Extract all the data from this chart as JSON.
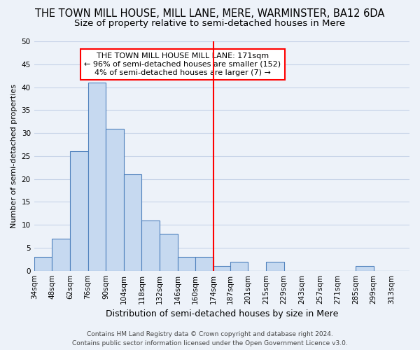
{
  "title": "THE TOWN MILL HOUSE, MILL LANE, MERE, WARMINSTER, BA12 6DA",
  "subtitle": "Size of property relative to semi-detached houses in Mere",
  "xlabel": "Distribution of semi-detached houses by size in Mere",
  "ylabel": "Number of semi-detached properties",
  "footer_line1": "Contains HM Land Registry data © Crown copyright and database right 2024.",
  "footer_line2": "Contains public sector information licensed under the Open Government Licence v3.0.",
  "bin_edges": [
    34,
    48,
    62,
    76,
    90,
    104,
    118,
    132,
    146,
    160,
    174,
    187,
    201,
    215,
    229,
    243,
    257,
    271,
    285,
    299,
    313,
    327
  ],
  "bin_labels": [
    "34sqm",
    "48sqm",
    "62sqm",
    "76sqm",
    "90sqm",
    "104sqm",
    "118sqm",
    "132sqm",
    "146sqm",
    "160sqm",
    "174sqm",
    "187sqm",
    "201sqm",
    "215sqm",
    "229sqm",
    "243sqm",
    "257sqm",
    "271sqm",
    "285sqm",
    "299sqm",
    "313sqm"
  ],
  "bar_values": [
    3,
    7,
    26,
    41,
    31,
    21,
    11,
    8,
    3,
    3,
    1,
    2,
    0,
    2,
    0,
    0,
    0,
    0,
    1,
    0,
    0
  ],
  "bar_color": "#c6d9f0",
  "bar_edge_color": "#4f81bd",
  "vline_x": 174,
  "annotation_text": "THE TOWN MILL HOUSE MILL LANE: 171sqm\n← 96% of semi-detached houses are smaller (152)\n4% of semi-detached houses are larger (7) →",
  "annotation_box_facecolor": "white",
  "annotation_box_edgecolor": "red",
  "vline_color": "red",
  "ylim": [
    0,
    50
  ],
  "yticks": [
    0,
    5,
    10,
    15,
    20,
    25,
    30,
    35,
    40,
    45,
    50
  ],
  "grid_color": "#c8d4e8",
  "bg_color": "#edf2f9",
  "title_fontsize": 10.5,
  "subtitle_fontsize": 9.5,
  "xlabel_fontsize": 9,
  "ylabel_fontsize": 8,
  "tick_fontsize": 7.5,
  "annotation_fontsize": 8,
  "footer_fontsize": 6.5
}
